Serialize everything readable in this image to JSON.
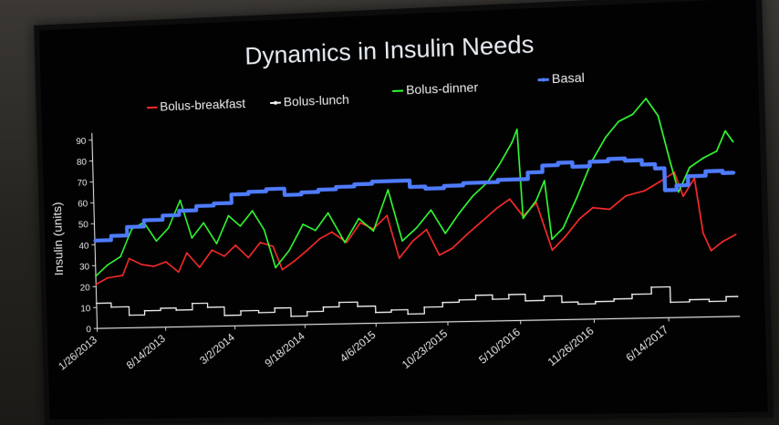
{
  "chart_data": {
    "type": "line",
    "title": "Dynamics in Insulin Needs",
    "xlabel": "",
    "ylabel": "Insulin (units)",
    "ylim": [
      0,
      90
    ],
    "yticks": [
      "0",
      "10",
      "20",
      "30",
      "40",
      "50",
      "60",
      "70",
      "80",
      "90"
    ],
    "x_tick_labels": [
      "1/26/2013",
      "8/14/2013",
      "3/2/2014",
      "9/18/2014",
      "4/6/2015",
      "10/23/2015",
      "5/10/2016",
      "11/26/2016",
      "6/14/2017"
    ],
    "x_tick_dates": [
      "2013-01-26",
      "2013-08-14",
      "2014-03-02",
      "2014-09-18",
      "2015-04-06",
      "2015-10-23",
      "2016-05-10",
      "2016-11-26",
      "2017-06-14"
    ],
    "xlim": [
      "2013-01-26",
      "2017-12-20"
    ],
    "grid": false,
    "legend_position": "top",
    "series": [
      {
        "name": "Bolus-breakfast",
        "color": "#ff2b2b",
        "points": [
          [
            "2013-01-26",
            21
          ],
          [
            "2013-03-01",
            24
          ],
          [
            "2013-04-15",
            25
          ],
          [
            "2013-05-05",
            33
          ],
          [
            "2013-06-10",
            30
          ],
          [
            "2013-07-15",
            29
          ],
          [
            "2013-08-20",
            31
          ],
          [
            "2013-09-25",
            26
          ],
          [
            "2013-10-20",
            35
          ],
          [
            "2013-11-25",
            28
          ],
          [
            "2014-01-01",
            36
          ],
          [
            "2014-02-05",
            33
          ],
          [
            "2014-03-10",
            38
          ],
          [
            "2014-04-15",
            32
          ],
          [
            "2014-05-20",
            39
          ],
          [
            "2014-06-25",
            37
          ],
          [
            "2014-07-20",
            26
          ],
          [
            "2014-08-25",
            30
          ],
          [
            "2014-10-01",
            35
          ],
          [
            "2014-11-05",
            40
          ],
          [
            "2014-12-10",
            43
          ],
          [
            "2015-01-20",
            38
          ],
          [
            "2015-03-01",
            47
          ],
          [
            "2015-04-06",
            44
          ],
          [
            "2015-05-15",
            50
          ],
          [
            "2015-06-15",
            30
          ],
          [
            "2015-07-25",
            38
          ],
          [
            "2015-09-01",
            43
          ],
          [
            "2015-10-05",
            31
          ],
          [
            "2015-11-10",
            34
          ],
          [
            "2015-12-20",
            40
          ],
          [
            "2016-02-01",
            46
          ],
          [
            "2016-03-15",
            52
          ],
          [
            "2016-04-20",
            56
          ],
          [
            "2016-05-25",
            48
          ],
          [
            "2016-07-01",
            54
          ],
          [
            "2016-08-10",
            32
          ],
          [
            "2016-09-15",
            38
          ],
          [
            "2016-10-25",
            46
          ],
          [
            "2016-12-01",
            51
          ],
          [
            "2017-01-15",
            50
          ],
          [
            "2017-03-01",
            56
          ],
          [
            "2017-04-20",
            58
          ],
          [
            "2017-06-01",
            62
          ],
          [
            "2017-07-10",
            66
          ],
          [
            "2017-08-01",
            55
          ],
          [
            "2017-09-01",
            63
          ],
          [
            "2017-09-20",
            38
          ],
          [
            "2017-10-10",
            30
          ],
          [
            "2017-11-10",
            34
          ],
          [
            "2017-12-15",
            37
          ]
        ]
      },
      {
        "name": "Bolus-lunch",
        "color": "#f2f2f2",
        "points": [
          [
            "2013-01-26",
            12
          ],
          [
            "2013-03-10",
            10
          ],
          [
            "2013-05-01",
            6
          ],
          [
            "2013-06-15",
            8
          ],
          [
            "2013-08-01",
            9
          ],
          [
            "2013-09-15",
            8
          ],
          [
            "2013-11-01",
            11
          ],
          [
            "2013-12-15",
            9
          ],
          [
            "2014-02-01",
            5
          ],
          [
            "2014-03-20",
            7
          ],
          [
            "2014-05-10",
            6
          ],
          [
            "2014-06-25",
            8
          ],
          [
            "2014-08-10",
            4
          ],
          [
            "2014-09-25",
            6
          ],
          [
            "2014-11-10",
            8
          ],
          [
            "2014-12-25",
            10
          ],
          [
            "2015-02-15",
            8
          ],
          [
            "2015-04-06",
            5
          ],
          [
            "2015-05-20",
            6
          ],
          [
            "2015-07-05",
            4
          ],
          [
            "2015-08-20",
            7
          ],
          [
            "2015-10-10",
            9
          ],
          [
            "2015-11-25",
            10
          ],
          [
            "2016-01-10",
            12
          ],
          [
            "2016-02-25",
            10
          ],
          [
            "2016-04-10",
            12
          ],
          [
            "2016-05-25",
            9
          ],
          [
            "2016-07-15",
            11
          ],
          [
            "2016-09-01",
            8
          ],
          [
            "2016-10-15",
            7
          ],
          [
            "2016-12-01",
            8
          ],
          [
            "2017-01-20",
            9
          ],
          [
            "2017-03-10",
            11
          ],
          [
            "2017-05-01",
            14
          ],
          [
            "2017-06-20",
            7
          ],
          [
            "2017-08-10",
            8
          ],
          [
            "2017-10-01",
            7
          ],
          [
            "2017-11-15",
            9
          ],
          [
            "2017-12-15",
            9
          ]
        ]
      },
      {
        "name": "Bolus-dinner",
        "color": "#33ff33",
        "points": [
          [
            "2013-01-26",
            25
          ],
          [
            "2013-03-01",
            30
          ],
          [
            "2013-04-10",
            34
          ],
          [
            "2013-05-15",
            47
          ],
          [
            "2013-06-20",
            50
          ],
          [
            "2013-07-25",
            41
          ],
          [
            "2013-08-30",
            47
          ],
          [
            "2013-10-05",
            60
          ],
          [
            "2013-11-05",
            42
          ],
          [
            "2013-12-10",
            49
          ],
          [
            "2014-01-15",
            39
          ],
          [
            "2014-02-20",
            52
          ],
          [
            "2014-03-25",
            47
          ],
          [
            "2014-04-30",
            54
          ],
          [
            "2014-06-01",
            45
          ],
          [
            "2014-07-01",
            27
          ],
          [
            "2014-08-10",
            35
          ],
          [
            "2014-09-20",
            47
          ],
          [
            "2014-10-25",
            44
          ],
          [
            "2014-12-01",
            52
          ],
          [
            "2015-01-15",
            38
          ],
          [
            "2015-02-25",
            49
          ],
          [
            "2015-04-06",
            43
          ],
          [
            "2015-05-20",
            62
          ],
          [
            "2015-06-25",
            38
          ],
          [
            "2015-08-05",
            44
          ],
          [
            "2015-09-15",
            52
          ],
          [
            "2015-10-23",
            41
          ],
          [
            "2015-12-01",
            50
          ],
          [
            "2016-01-10",
            58
          ],
          [
            "2016-02-20",
            64
          ],
          [
            "2016-03-25",
            72
          ],
          [
            "2016-04-30",
            82
          ],
          [
            "2016-05-15",
            88
          ],
          [
            "2016-05-25",
            47
          ],
          [
            "2016-07-01",
            55
          ],
          [
            "2016-07-25",
            64
          ],
          [
            "2016-08-10",
            37
          ],
          [
            "2016-09-10",
            42
          ],
          [
            "2016-10-20",
            56
          ],
          [
            "2016-12-01",
            72
          ],
          [
            "2017-01-10",
            83
          ],
          [
            "2017-02-15",
            90
          ],
          [
            "2017-03-25",
            93
          ],
          [
            "2017-05-01",
            100
          ],
          [
            "2017-06-01",
            92
          ],
          [
            "2017-07-01",
            70
          ],
          [
            "2017-07-20",
            57
          ],
          [
            "2017-08-20",
            68
          ],
          [
            "2017-09-25",
            72
          ],
          [
            "2017-11-01",
            75
          ],
          [
            "2017-11-25",
            84
          ],
          [
            "2017-12-15",
            79
          ]
        ]
      },
      {
        "name": "Basal",
        "color": "#4f7cff",
        "points": [
          [
            "2013-01-26",
            42
          ],
          [
            "2013-03-15",
            44
          ],
          [
            "2013-05-01",
            48
          ],
          [
            "2013-06-20",
            51
          ],
          [
            "2013-08-14",
            53
          ],
          [
            "2013-10-01",
            55
          ],
          [
            "2013-11-20",
            57
          ],
          [
            "2014-01-10",
            58
          ],
          [
            "2014-03-02",
            62
          ],
          [
            "2014-04-20",
            63
          ],
          [
            "2014-06-10",
            64
          ],
          [
            "2014-08-01",
            61
          ],
          [
            "2014-09-18",
            62
          ],
          [
            "2014-11-05",
            63
          ],
          [
            "2014-12-25",
            64
          ],
          [
            "2015-02-15",
            65
          ],
          [
            "2015-04-06",
            66
          ],
          [
            "2015-06-01",
            66
          ],
          [
            "2015-07-20",
            63
          ],
          [
            "2015-09-01",
            62
          ],
          [
            "2015-10-23",
            63
          ],
          [
            "2015-12-15",
            64
          ],
          [
            "2016-02-01",
            64
          ],
          [
            "2016-03-20",
            65
          ],
          [
            "2016-05-10",
            65
          ],
          [
            "2016-06-10",
            68
          ],
          [
            "2016-07-20",
            71
          ],
          [
            "2016-09-01",
            72
          ],
          [
            "2016-10-10",
            70
          ],
          [
            "2016-11-26",
            72
          ],
          [
            "2017-01-15",
            73
          ],
          [
            "2017-03-01",
            72
          ],
          [
            "2017-04-15",
            70
          ],
          [
            "2017-05-20",
            68
          ],
          [
            "2017-06-14",
            58
          ],
          [
            "2017-07-15",
            60
          ],
          [
            "2017-08-15",
            64
          ],
          [
            "2017-10-01",
            66
          ],
          [
            "2017-11-15",
            65
          ],
          [
            "2017-12-15",
            65
          ]
        ]
      }
    ]
  }
}
